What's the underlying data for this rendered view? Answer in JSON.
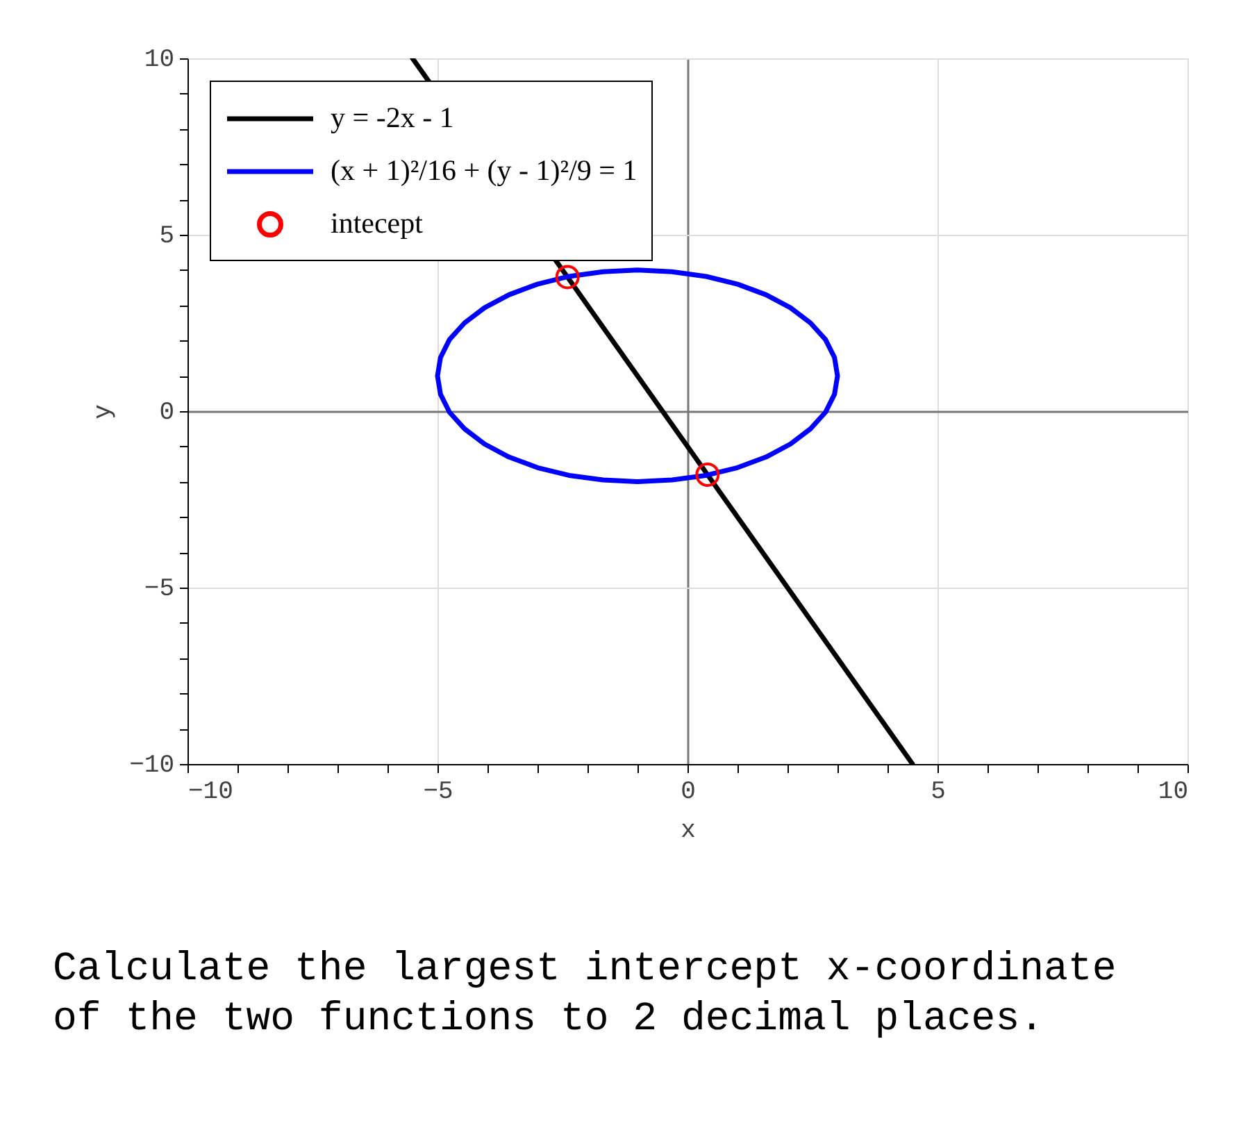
{
  "chart_data": {
    "type": "line",
    "xlabel": "x",
    "ylabel": "y",
    "xlim": [
      -10,
      10
    ],
    "ylim": [
      -10,
      10
    ],
    "xticks": [
      -10,
      {
        "value": -9,
        "label": null
      },
      {
        "value": -8,
        "label": null
      },
      {
        "value": -7,
        "label": null
      },
      {
        "value": -6,
        "label": null
      },
      -5,
      {
        "value": -4,
        "label": null
      },
      {
        "value": -3,
        "label": null
      },
      {
        "value": -2,
        "label": null
      },
      {
        "value": -1,
        "label": null
      },
      0,
      {
        "value": 1,
        "label": null
      },
      {
        "value": 2,
        "label": null
      },
      {
        "value": 3,
        "label": null
      },
      {
        "value": 4,
        "label": null
      },
      5,
      {
        "value": 6,
        "label": null
      },
      {
        "value": 7,
        "label": null
      },
      {
        "value": 8,
        "label": null
      },
      {
        "value": 9,
        "label": null
      },
      10
    ],
    "yticks": [
      -10,
      {
        "value": -9,
        "label": null
      },
      {
        "value": -8,
        "label": null
      },
      {
        "value": -7,
        "label": null
      },
      {
        "value": -6,
        "label": null
      },
      -5,
      {
        "value": -4,
        "label": null
      },
      {
        "value": -3,
        "label": null
      },
      {
        "value": -2,
        "label": null
      },
      {
        "value": -1,
        "label": null
      },
      0,
      {
        "value": 1,
        "label": null
      },
      {
        "value": 2,
        "label": null
      },
      {
        "value": 3,
        "label": null
      },
      {
        "value": 4,
        "label": null
      },
      5,
      {
        "value": 6,
        "label": null
      },
      {
        "value": 7,
        "label": null
      },
      {
        "value": 8,
        "label": null
      },
      {
        "value": 9,
        "label": null
      },
      10
    ],
    "grid": true,
    "legend": "top left",
    "line_style": "solid",
    "series": [
      {
        "name": "y = -2x - 1",
        "color": "#000000",
        "x": [
          -5.5,
          4.5
        ],
        "values": [
          10,
          -10
        ]
      },
      {
        "name": "(x + 1)²/16 + (y - 1)²/9 = 1",
        "color": "#0000ff",
        "x": [
          -5.0,
          -4.94,
          -4.76,
          -4.46,
          -4.06,
          -3.57,
          -3.0,
          -2.37,
          -1.69,
          -1.0,
          -0.31,
          0.37,
          1.0,
          1.57,
          2.06,
          2.46,
          2.76,
          2.94,
          3.0,
          2.94,
          2.76,
          2.46,
          2.06,
          1.57,
          1.0,
          0.37,
          -0.31,
          -1.0,
          -1.69,
          -2.37,
          -3.0,
          -3.57,
          -4.06,
          -4.46,
          -4.76,
          -4.94,
          -5.0,
          -4.94
        ],
        "values": [
          1.0,
          1.52,
          2.03,
          2.5,
          2.93,
          3.3,
          3.6,
          3.82,
          3.95,
          4.0,
          3.95,
          3.82,
          3.6,
          3.3,
          2.93,
          2.5,
          2.03,
          1.52,
          1.0,
          0.48,
          -0.03,
          -0.5,
          -0.93,
          -1.3,
          -1.6,
          -1.82,
          -1.95,
          -2.0,
          -1.95,
          -1.82,
          -1.6,
          -1.3,
          -0.93,
          -0.5,
          -0.03,
          0.48,
          1.0,
          1.52
        ]
      },
      {
        "name": "intecept",
        "type": "scatter",
        "marker": "circle",
        "color": "#ff0000",
        "x": [
          -2.4,
          0.4
        ],
        "values": [
          3.8,
          -1.8
        ]
      }
    ],
    "annotations": [
      "Calculate the largest intercept x-coordinate of the two functions to 2 decimal places."
    ]
  }
}
